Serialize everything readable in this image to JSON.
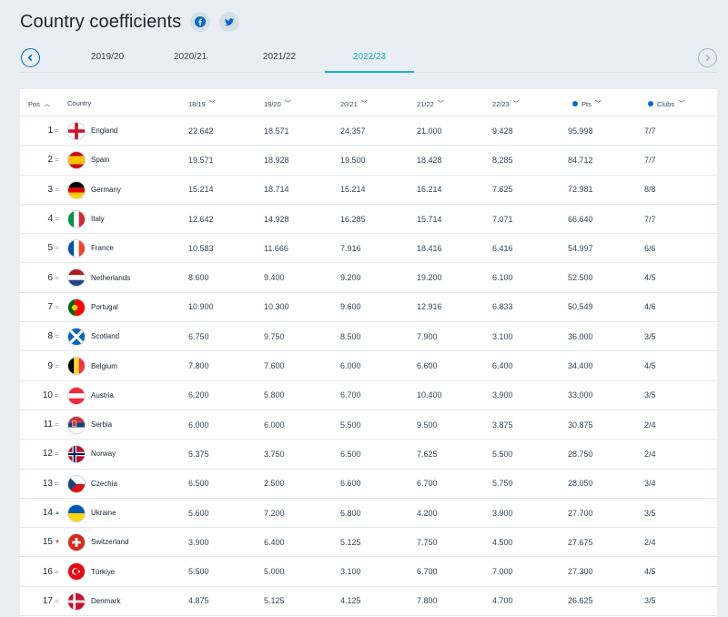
{
  "header": {
    "title": "Country coefficients",
    "social": [
      "facebook-icon",
      "twitter-icon"
    ]
  },
  "seasons": {
    "tabs": [
      "2019/20",
      "2020/21",
      "2021/22",
      "2022/23"
    ],
    "active_index": 3
  },
  "table": {
    "columns": {
      "pos": "Pos",
      "country": "Country",
      "s1": "18/19",
      "s2": "19/20",
      "s3": "20/21",
      "s4": "21/22",
      "s5": "22/23",
      "pts": "Pts",
      "clubs": "Clubs"
    },
    "rows": [
      {
        "pos": "1",
        "trend": "=",
        "country": "England",
        "flag": "england",
        "s1": "22.642",
        "s2": "18.571",
        "s3": "24.357",
        "s4": "21.000",
        "s5": "9.428",
        "pts": "95.998",
        "clubs": "7/7"
      },
      {
        "pos": "2",
        "trend": "=",
        "country": "Spain",
        "flag": "spain",
        "s1": "19.571",
        "s2": "18.928",
        "s3": "19.500",
        "s4": "18.428",
        "s5": "8.285",
        "pts": "84.712",
        "clubs": "7/7"
      },
      {
        "pos": "3",
        "trend": "=",
        "country": "Germany",
        "flag": "germany",
        "s1": "15.214",
        "s2": "18.714",
        "s3": "15.214",
        "s4": "16.214",
        "s5": "7.625",
        "pts": "72.981",
        "clubs": "8/8"
      },
      {
        "pos": "4",
        "trend": "=",
        "country": "Italy",
        "flag": "italy",
        "s1": "12.642",
        "s2": "14.928",
        "s3": "16.285",
        "s4": "15.714",
        "s5": "7.071",
        "pts": "66.640",
        "clubs": "7/7"
      },
      {
        "pos": "5",
        "trend": "=",
        "country": "France",
        "flag": "france",
        "s1": "10.583",
        "s2": "11.666",
        "s3": "7.916",
        "s4": "18.416",
        "s5": "6.416",
        "pts": "54.997",
        "clubs": "6/6"
      },
      {
        "pos": "6",
        "trend": "=",
        "country": "Netherlands",
        "flag": "netherlands",
        "s1": "8.600",
        "s2": "9.400",
        "s3": "9.200",
        "s4": "19.200",
        "s5": "6.100",
        "pts": "52.500",
        "clubs": "4/5"
      },
      {
        "pos": "7",
        "trend": "=",
        "country": "Portugal",
        "flag": "portugal",
        "s1": "10.900",
        "s2": "10.300",
        "s3": "9.600",
        "s4": "12.916",
        "s5": "6.833",
        "pts": "50.549",
        "clubs": "4/6"
      },
      {
        "pos": "8",
        "trend": "=",
        "country": "Scotland",
        "flag": "scotland",
        "s1": "6.750",
        "s2": "9.750",
        "s3": "8.500",
        "s4": "7.900",
        "s5": "3.100",
        "pts": "36.000",
        "clubs": "3/5"
      },
      {
        "pos": "9",
        "trend": "=",
        "country": "Belgium",
        "flag": "belgium",
        "s1": "7.800",
        "s2": "7.600",
        "s3": "6.000",
        "s4": "6.600",
        "s5": "6.400",
        "pts": "34.400",
        "clubs": "4/5"
      },
      {
        "pos": "10",
        "trend": "=",
        "country": "Austria",
        "flag": "austria",
        "s1": "6.200",
        "s2": "5.800",
        "s3": "6.700",
        "s4": "10.400",
        "s5": "3.900",
        "pts": "33.000",
        "clubs": "3/5"
      },
      {
        "pos": "11",
        "trend": "=",
        "country": "Serbia",
        "flag": "serbia",
        "s1": "6.000",
        "s2": "6.000",
        "s3": "5.500",
        "s4": "9.500",
        "s5": "3.875",
        "pts": "30.875",
        "clubs": "2/4"
      },
      {
        "pos": "12",
        "trend": "=",
        "country": "Norway",
        "flag": "norway",
        "s1": "5.375",
        "s2": "3.750",
        "s3": "6.500",
        "s4": "7.625",
        "s5": "5.500",
        "pts": "28.750",
        "clubs": "2/4"
      },
      {
        "pos": "13",
        "trend": "=",
        "country": "Czechia",
        "flag": "czechia",
        "s1": "6.500",
        "s2": "2.500",
        "s3": "6.600",
        "s4": "6.700",
        "s5": "5.750",
        "pts": "28.050",
        "clubs": "3/4"
      },
      {
        "pos": "14",
        "trend": "up",
        "country": "Ukraine",
        "flag": "ukraine",
        "s1": "5.600",
        "s2": "7.200",
        "s3": "6.800",
        "s4": "4.200",
        "s5": "3.900",
        "pts": "27.700",
        "clubs": "3/5"
      },
      {
        "pos": "15",
        "trend": "down",
        "country": "Switzerland",
        "flag": "switzerland",
        "s1": "3.900",
        "s2": "6.400",
        "s3": "5.125",
        "s4": "7.750",
        "s5": "4.500",
        "pts": "27.675",
        "clubs": "2/4"
      },
      {
        "pos": "16",
        "trend": "=",
        "country": "Türkiye",
        "flag": "turkiye",
        "s1": "5.500",
        "s2": "5.000",
        "s3": "3.100",
        "s4": "6.700",
        "s5": "7.000",
        "pts": "27.300",
        "clubs": "4/5"
      },
      {
        "pos": "17",
        "trend": "=",
        "country": "Denmark",
        "flag": "denmark",
        "s1": "4.875",
        "s2": "5.125",
        "s3": "4.125",
        "s4": "7.800",
        "s5": "4.700",
        "pts": "26.625",
        "clubs": "3/5"
      }
    ]
  },
  "colors": {
    "accent": "#0a6ac4",
    "active_tab": "#1bb1d8",
    "up": "#25a36b",
    "down": "#d9304a"
  }
}
